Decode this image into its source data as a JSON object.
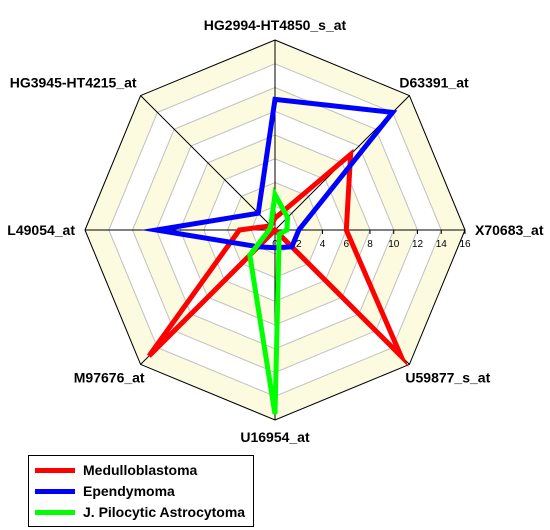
{
  "chart_data": {
    "type": "radar",
    "axes": [
      "HG2994-HT4850_s_at",
      "D63391_at",
      "X70683_at",
      "U59877_s_at",
      "U16954_at",
      "M97676_at",
      "L49054_at",
      "HG3945-HT4215_at"
    ],
    "range": [
      0,
      16
    ],
    "ticks": [
      "0",
      "2",
      "4",
      "6",
      "8",
      "10",
      "12",
      "14",
      "16"
    ],
    "grid": true,
    "legend_position": "bottom-left",
    "series": [
      {
        "name": "Medulloblastoma",
        "color": "#ff0000",
        "values": [
          1.0,
          9.0,
          6.0,
          15.0,
          0.0,
          15.0,
          3.0,
          0.5
        ]
      },
      {
        "name": "Ependymoma",
        "color": "#0000ff",
        "values": [
          11.0,
          14.0,
          2.0,
          2.0,
          1.5,
          2.0,
          10.0,
          2.0
        ]
      },
      {
        "name": "J. Pilocytic Astrocytoma",
        "color": "#00ff00",
        "values": [
          3.0,
          1.5,
          1.0,
          0.5,
          15.5,
          3.0,
          0.5,
          0.5
        ]
      }
    ]
  }
}
